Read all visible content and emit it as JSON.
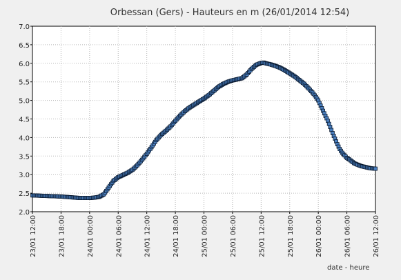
{
  "chart_data": {
    "type": "scatter",
    "title": "Orbessan (Gers) - Hauteurs en m (26/01/2014 12:54)",
    "xlabel": "date - heure",
    "ylabel": "",
    "x_unit": "hours",
    "x_range": [
      0,
      72
    ],
    "ylim": [
      2.0,
      7.0
    ],
    "y_ticks": [
      "2.0",
      "2.5",
      "3.0",
      "3.5",
      "4.0",
      "4.5",
      "5.0",
      "5.5",
      "6.0",
      "6.5",
      "7.0"
    ],
    "x_ticks": [
      {
        "at": 0,
        "label": "23/01 12:00"
      },
      {
        "at": 6,
        "label": "23/01 18:00"
      },
      {
        "at": 12,
        "label": "24/01 00:00"
      },
      {
        "at": 18,
        "label": "24/01 06:00"
      },
      {
        "at": 24,
        "label": "24/01 12:00"
      },
      {
        "at": 30,
        "label": "24/01 18:00"
      },
      {
        "at": 36,
        "label": "25/01 00:00"
      },
      {
        "at": 42,
        "label": "25/01 06:00"
      },
      {
        "at": 48,
        "label": "25/01 12:00"
      },
      {
        "at": 54,
        "label": "25/01 18:00"
      },
      {
        "at": 60,
        "label": "26/01 00:00"
      },
      {
        "at": 66,
        "label": "26/01 06:00"
      },
      {
        "at": 72,
        "label": "26/01 12:00"
      }
    ],
    "grid": true,
    "colors": {
      "marker": "#4a7fbf",
      "marker_edge": "#0a1a30"
    },
    "series": [
      {
        "name": "",
        "x": [
          0,
          2,
          4,
          6,
          8,
          10,
          12,
          13,
          14,
          15,
          16,
          17,
          18,
          19,
          20,
          21,
          22,
          23,
          24,
          25,
          26,
          27,
          28,
          29,
          30,
          31,
          32,
          33,
          34,
          35,
          36,
          37,
          38,
          39,
          40,
          41,
          42,
          43,
          44,
          45,
          46,
          47,
          48,
          48.5,
          49,
          50,
          51,
          52,
          53,
          54,
          55,
          56,
          57,
          58,
          59,
          60,
          61,
          62,
          63,
          63.5,
          64,
          64.5,
          65,
          65.5,
          66,
          66.5,
          67,
          67.5,
          68,
          69,
          70,
          71,
          72
        ],
        "values": [
          2.44,
          2.43,
          2.42,
          2.41,
          2.39,
          2.37,
          2.37,
          2.38,
          2.4,
          2.47,
          2.65,
          2.83,
          2.93,
          2.99,
          3.05,
          3.13,
          3.25,
          3.4,
          3.56,
          3.74,
          3.93,
          4.07,
          4.18,
          4.3,
          4.45,
          4.59,
          4.71,
          4.81,
          4.89,
          4.97,
          5.05,
          5.14,
          5.25,
          5.36,
          5.44,
          5.5,
          5.54,
          5.57,
          5.6,
          5.7,
          5.85,
          5.96,
          6.01,
          6.02,
          6.0,
          5.97,
          5.93,
          5.88,
          5.81,
          5.73,
          5.65,
          5.55,
          5.45,
          5.32,
          5.18,
          5.0,
          4.72,
          4.45,
          4.12,
          3.97,
          3.82,
          3.69,
          3.59,
          3.52,
          3.45,
          3.41,
          3.36,
          3.31,
          3.28,
          3.23,
          3.2,
          3.17,
          3.16
        ]
      }
    ]
  }
}
